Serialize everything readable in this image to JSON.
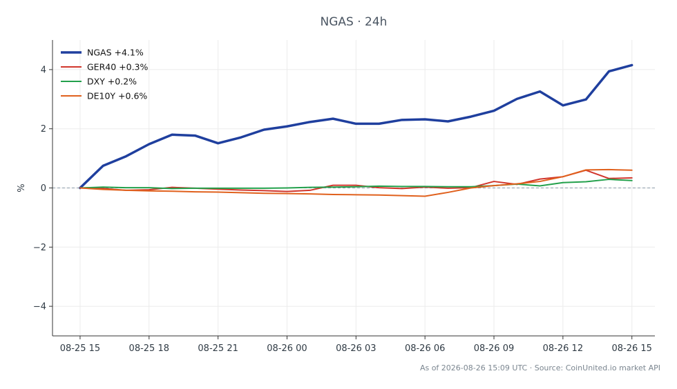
{
  "chart_data": {
    "type": "line",
    "title": "NGAS · 24h",
    "xlabel": "",
    "ylabel": "%",
    "ylim": [
      -5,
      5
    ],
    "yticks": [
      -4,
      -2,
      0,
      2,
      4
    ],
    "ytick_labels": [
      "−4",
      "−2",
      "0",
      "2",
      "4"
    ],
    "x": [
      0,
      1,
      2,
      3,
      4,
      5,
      6,
      7,
      8,
      9,
      10,
      11,
      12,
      13,
      14,
      15,
      16,
      17,
      18,
      19,
      20,
      21,
      22,
      23,
      24
    ],
    "xlim": [
      -1.2,
      25
    ],
    "xticks": [
      0,
      3,
      6,
      9,
      12,
      15,
      18,
      21,
      24
    ],
    "xtick_labels": [
      "08-25 15",
      "08-25 18",
      "08-25 21",
      "08-26 00",
      "08-26 03",
      "08-26 06",
      "08-26 09",
      "08-26 12",
      "08-26 15"
    ],
    "grid": true,
    "legend_position": "top-left",
    "series": [
      {
        "name": "NGAS +4.1%",
        "color": "#1f3f9e",
        "width": 3.5,
        "values": [
          0.0,
          0.75,
          1.07,
          1.48,
          1.8,
          1.77,
          1.51,
          1.71,
          1.97,
          2.08,
          2.23,
          2.34,
          2.17,
          2.17,
          2.3,
          2.32,
          2.25,
          2.41,
          2.61,
          3.01,
          3.26,
          2.79,
          2.99,
          3.94,
          4.15
        ]
      },
      {
        "name": "GER40 +0.3%",
        "color": "#d1352b",
        "width": 2,
        "values": [
          0.0,
          -0.02,
          -0.08,
          -0.06,
          0.02,
          -0.01,
          -0.04,
          -0.07,
          -0.09,
          -0.12,
          -0.08,
          0.09,
          0.09,
          0.01,
          -0.02,
          0.03,
          -0.01,
          0.01,
          0.22,
          0.12,
          0.3,
          0.38,
          0.6,
          0.32,
          0.34
        ]
      },
      {
        "name": "DXY +0.2%",
        "color": "#22a04b",
        "width": 2,
        "values": [
          0.0,
          0.03,
          0.01,
          0.01,
          -0.02,
          -0.01,
          -0.01,
          -0.01,
          -0.01,
          0.0,
          0.02,
          0.03,
          0.04,
          0.06,
          0.05,
          0.05,
          0.04,
          0.04,
          0.08,
          0.13,
          0.07,
          0.18,
          0.21,
          0.29,
          0.25
        ]
      },
      {
        "name": "DE10Y +0.6%",
        "color": "#e0601c",
        "width": 2,
        "values": [
          0.0,
          -0.05,
          -0.08,
          -0.1,
          -0.11,
          -0.13,
          -0.14,
          -0.16,
          -0.18,
          -0.19,
          -0.2,
          -0.22,
          -0.23,
          -0.24,
          -0.26,
          -0.28,
          -0.15,
          0.0,
          0.08,
          0.14,
          0.22,
          0.38,
          0.61,
          0.62,
          0.6
        ]
      }
    ]
  },
  "footer": "As of 2026-08-26 15:09 UTC · Source: CoinUnited.io market API"
}
